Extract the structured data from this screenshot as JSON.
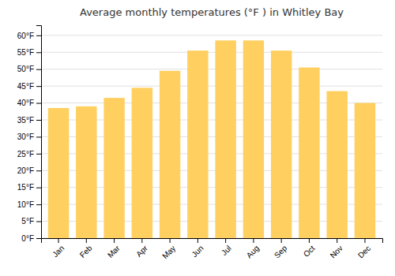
{
  "chart_data": {
    "type": "bar",
    "title": "Average monthly temperatures (°F ) in Whitley Bay",
    "categories": [
      "Jan",
      "Feb",
      "Mar",
      "Apr",
      "May",
      "Jun",
      "Jul",
      "Aug",
      "Sep",
      "Oct",
      "Nov",
      "Dec"
    ],
    "values": [
      38.5,
      39.0,
      41.5,
      44.5,
      49.5,
      55.5,
      58.5,
      58.5,
      55.5,
      50.5,
      43.5,
      40.0
    ],
    "color": "#FFD060",
    "ylim": [
      0,
      63
    ],
    "yticks": [
      {
        "value": 0,
        "label": "0°F"
      },
      {
        "value": 5,
        "label": "5°F"
      },
      {
        "value": 10,
        "label": "10°F"
      },
      {
        "value": 15,
        "label": "15°F"
      },
      {
        "value": 20,
        "label": "20°F"
      },
      {
        "value": 25,
        "label": "25°F"
      },
      {
        "value": 30,
        "label": "30°F"
      },
      {
        "value": 35,
        "label": "35°F"
      },
      {
        "value": 40,
        "label": "40°F"
      },
      {
        "value": 45,
        "label": "45°F"
      },
      {
        "value": 50,
        "label": "50°F"
      },
      {
        "value": 55,
        "label": "55°F"
      },
      {
        "value": 60,
        "label": "60°F"
      }
    ],
    "grid": true
  }
}
